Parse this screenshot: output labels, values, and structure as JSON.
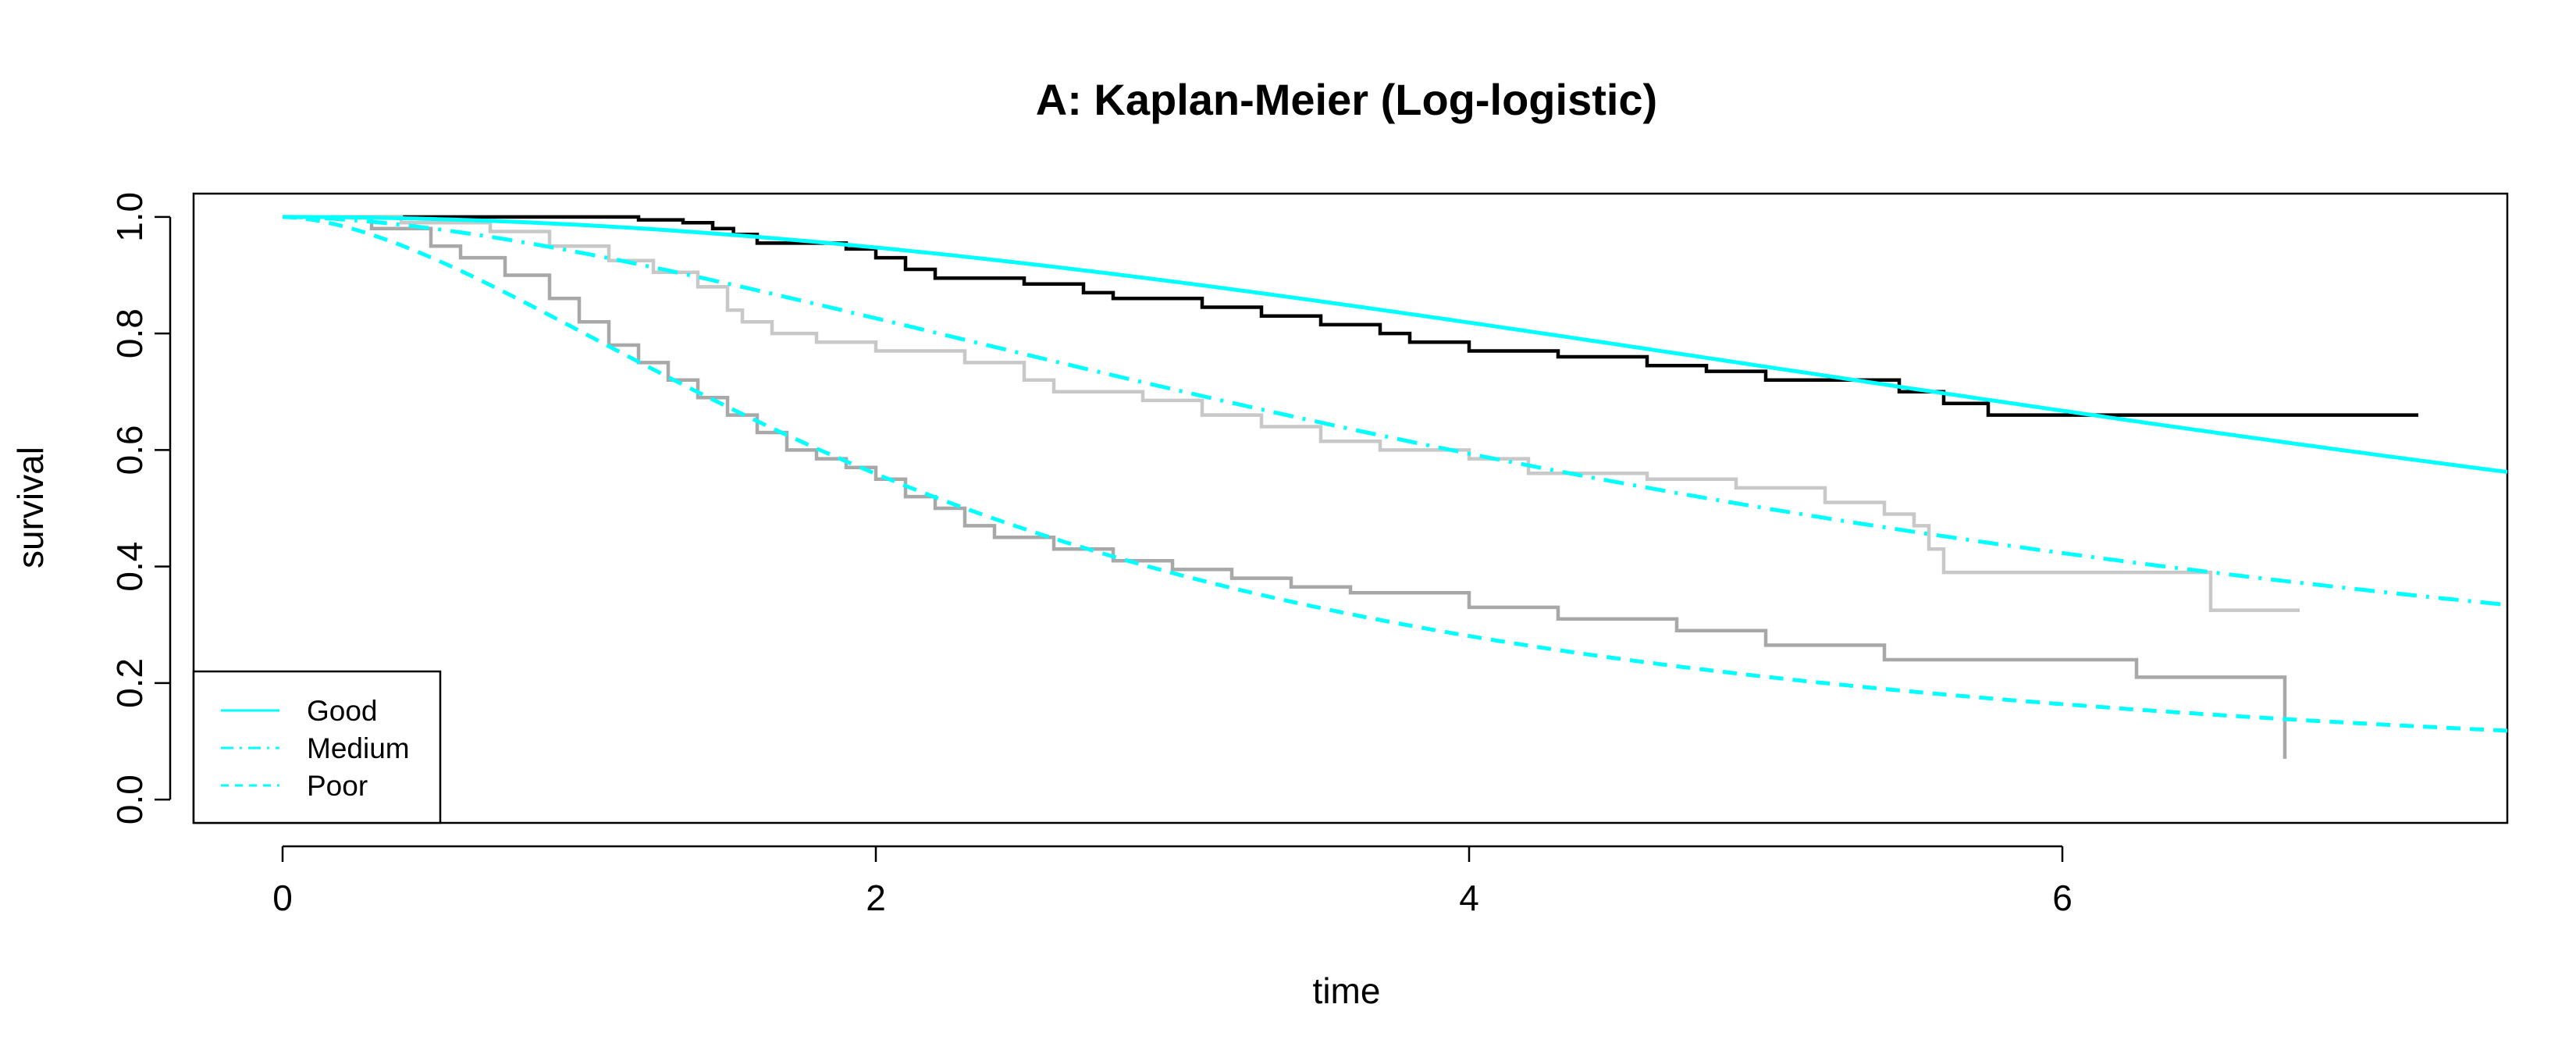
{
  "chart_data": {
    "type": "line",
    "title": "A: Kaplan-Meier (Log-logistic)",
    "xlabel": "time",
    "ylabel": "survival",
    "xlim": [
      -0.3,
      7.5
    ],
    "ylim": [
      -0.04,
      1.04
    ],
    "x_ticks": [
      0,
      2,
      4,
      6
    ],
    "y_ticks": [
      0.0,
      0.2,
      0.4,
      0.6,
      0.8,
      1.0
    ],
    "y_tick_labels": [
      "0.0",
      "0.2",
      "0.4",
      "0.6",
      "0.8",
      "1.0"
    ],
    "grid": false,
    "legend_position": "bottom-left",
    "legend": [
      {
        "label": "Good",
        "color": "#00FFFF",
        "linestyle": "solid"
      },
      {
        "label": "Medium",
        "color": "#00FFFF",
        "linestyle": "dashdot"
      },
      {
        "label": "Poor",
        "color": "#00FFFF",
        "linestyle": "dashed"
      }
    ],
    "km_steps": [
      {
        "color": "#000000",
        "x": [
          0,
          0.5,
          1.2,
          1.35,
          1.45,
          1.52,
          1.6,
          1.9,
          2.0,
          2.1,
          2.2,
          2.5,
          2.7,
          2.8,
          3.1,
          3.3,
          3.5,
          3.7,
          3.8,
          4.0,
          4.3,
          4.6,
          4.8,
          5.0,
          5.45,
          5.6,
          5.75,
          7.2
        ],
        "y": [
          1.0,
          1.0,
          0.995,
          0.99,
          0.98,
          0.97,
          0.955,
          0.945,
          0.93,
          0.91,
          0.895,
          0.885,
          0.87,
          0.86,
          0.845,
          0.83,
          0.815,
          0.8,
          0.785,
          0.77,
          0.76,
          0.745,
          0.735,
          0.72,
          0.7,
          0.68,
          0.66,
          0.66
        ]
      },
      {
        "color": "#C8C8C8",
        "x": [
          0,
          0.4,
          0.7,
          0.9,
          1.1,
          1.25,
          1.4,
          1.5,
          1.55,
          1.65,
          1.8,
          2.0,
          2.3,
          2.5,
          2.6,
          2.9,
          3.1,
          3.3,
          3.5,
          3.7,
          4.0,
          4.2,
          4.6,
          4.9,
          5.2,
          5.4,
          5.5,
          5.55,
          5.6,
          6.5,
          6.8
        ],
        "y": [
          1.0,
          0.99,
          0.975,
          0.95,
          0.925,
          0.905,
          0.88,
          0.84,
          0.82,
          0.8,
          0.785,
          0.77,
          0.75,
          0.72,
          0.7,
          0.685,
          0.66,
          0.64,
          0.615,
          0.6,
          0.585,
          0.56,
          0.55,
          0.535,
          0.51,
          0.49,
          0.47,
          0.43,
          0.39,
          0.325,
          0.325
        ]
      },
      {
        "color": "#A8A8A8",
        "x": [
          0,
          0.3,
          0.5,
          0.6,
          0.75,
          0.9,
          1.0,
          1.1,
          1.2,
          1.3,
          1.4,
          1.5,
          1.6,
          1.7,
          1.8,
          1.9,
          2.0,
          2.1,
          2.2,
          2.3,
          2.4,
          2.6,
          2.8,
          3.0,
          3.2,
          3.4,
          3.6,
          4.0,
          4.3,
          4.7,
          5.0,
          5.4,
          6.25,
          6.75
        ],
        "y": [
          1.0,
          0.98,
          0.95,
          0.93,
          0.9,
          0.86,
          0.82,
          0.78,
          0.75,
          0.72,
          0.69,
          0.66,
          0.63,
          0.6,
          0.585,
          0.57,
          0.55,
          0.52,
          0.5,
          0.47,
          0.45,
          0.43,
          0.41,
          0.395,
          0.38,
          0.365,
          0.355,
          0.33,
          0.31,
          0.29,
          0.265,
          0.24,
          0.21,
          0.07
        ]
      }
    ],
    "fitted_curves": [
      {
        "name": "Good",
        "color": "#00FFFF",
        "linestyle": "solid",
        "scale": 8.5,
        "shape": 2.0
      },
      {
        "name": "Medium",
        "color": "#00FFFF",
        "linestyle": "dashdot",
        "scale": 5.0,
        "shape": 1.7
      },
      {
        "name": "Poor",
        "color": "#00FFFF",
        "linestyle": "dashed",
        "scale": 2.3,
        "shape": 1.7
      }
    ]
  }
}
